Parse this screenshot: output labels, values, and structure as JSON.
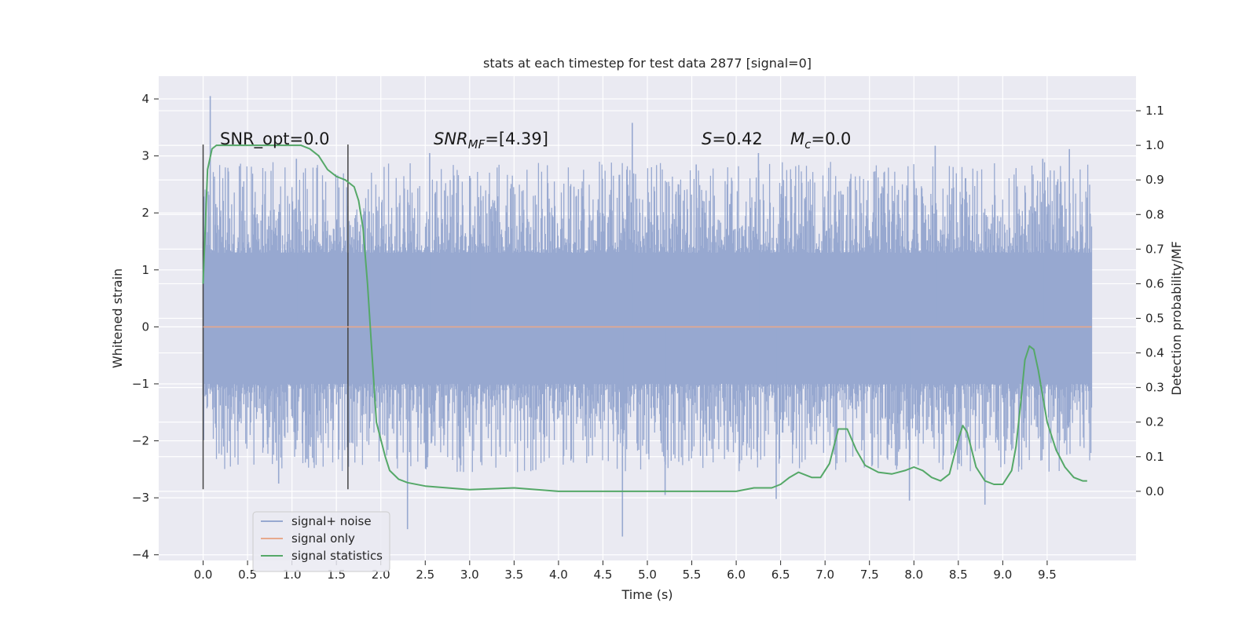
{
  "chart_data": {
    "type": "line",
    "title": "stats at each timestep for test data 2877 [signal=0]",
    "xlabel": "Time (s)",
    "ylabel": "Whitened strain",
    "y2label": "Detection probability/MF",
    "xlim": [
      -0.5,
      10.5
    ],
    "ylim": [
      -4.1,
      4.4
    ],
    "y2lim": [
      -0.2,
      1.2
    ],
    "x_ticks": [
      "0.0",
      "0.5",
      "1.0",
      "1.5",
      "2.0",
      "2.5",
      "3.0",
      "3.5",
      "4.0",
      "4.5",
      "5.0",
      "5.5",
      "6.0",
      "6.5",
      "7.0",
      "7.5",
      "8.0",
      "8.5",
      "9.0",
      "9.5"
    ],
    "y_ticks": [
      "4",
      "3",
      "2",
      "1",
      "0",
      "−1",
      "−2",
      "−3",
      "−4"
    ],
    "y2_ticks": [
      "1.1",
      "1.0",
      "0.9",
      "0.8",
      "0.7",
      "0.6",
      "0.5",
      "0.4",
      "0.3",
      "0.2",
      "0.1",
      "0.0"
    ],
    "grid": true,
    "legend_position": "lower-left",
    "annotations": {
      "snr_opt": "SNR_opt=0.0",
      "snr_mf_base": "SNR",
      "snr_mf_sub": "MF",
      "snr_mf_value": "=[4.39]",
      "s_symbol": "S",
      "s_value": "=0.42",
      "mc_base": "M",
      "mc_sub": "c",
      "mc_value": "=0.0"
    },
    "vlines": [
      0.0,
      1.63
    ],
    "vline_yrange": [
      -2.85,
      3.2
    ],
    "noise_envelope": {
      "x_start": 0.0,
      "x_end": 10.0,
      "core_low": -1.0,
      "core_high": 1.3,
      "spikes": [
        {
          "x": 0.08,
          "y": 4.05
        },
        {
          "x": 4.83,
          "y": 3.58
        },
        {
          "x": 8.24,
          "y": 3.18
        },
        {
          "x": 9.75,
          "y": 3.12
        },
        {
          "x": 2.3,
          "y": -3.55
        },
        {
          "x": 4.72,
          "y": -3.68
        },
        {
          "x": 8.8,
          "y": -3.12
        },
        {
          "x": 7.95,
          "y": -3.05
        },
        {
          "x": 6.45,
          "y": -3.02
        },
        {
          "x": 5.2,
          "y": -2.95
        },
        {
          "x": 1.05,
          "y": 2.95
        },
        {
          "x": 3.0,
          "y": 2.65
        },
        {
          "x": 6.25,
          "y": 3.05
        },
        {
          "x": 2.55,
          "y": 3.05
        },
        {
          "x": 0.85,
          "y": -2.75
        },
        {
          "x": 9.45,
          "y": 2.95
        },
        {
          "x": 5.55,
          "y": 2.85
        }
      ]
    },
    "series": [
      {
        "name": "signal+ noise",
        "color": "#97a8d0",
        "axis": "left"
      },
      {
        "name": "signal only",
        "color": "#e7a98d",
        "axis": "left",
        "x": [
          0.0,
          10.0
        ],
        "y": [
          0.0,
          0.0
        ]
      },
      {
        "name": "signal statistics",
        "color": "#55a868",
        "axis": "right",
        "x": [
          0.0,
          0.05,
          0.1,
          0.15,
          0.2,
          0.3,
          0.5,
          0.8,
          1.0,
          1.1,
          1.2,
          1.3,
          1.4,
          1.5,
          1.6,
          1.7,
          1.75,
          1.8,
          1.85,
          1.9,
          1.95,
          2.0,
          2.05,
          2.1,
          2.2,
          2.3,
          2.5,
          3.0,
          3.5,
          4.0,
          4.5,
          5.0,
          5.5,
          6.0,
          6.2,
          6.4,
          6.5,
          6.6,
          6.7,
          6.85,
          6.95,
          7.05,
          7.15,
          7.25,
          7.35,
          7.45,
          7.6,
          7.75,
          7.9,
          8.0,
          8.1,
          8.2,
          8.3,
          8.4,
          8.5,
          8.55,
          8.6,
          8.65,
          8.7,
          8.8,
          8.9,
          9.0,
          9.1,
          9.15,
          9.2,
          9.25,
          9.3,
          9.35,
          9.4,
          9.5,
          9.6,
          9.7,
          9.8,
          9.9,
          9.95
        ],
        "y": [
          0.6,
          0.93,
          0.99,
          1.0,
          1.0,
          1.0,
          1.0,
          1.0,
          1.0,
          1.0,
          0.99,
          0.97,
          0.93,
          0.91,
          0.9,
          0.88,
          0.84,
          0.76,
          0.6,
          0.4,
          0.2,
          0.15,
          0.1,
          0.06,
          0.035,
          0.025,
          0.015,
          0.005,
          0.01,
          0.0,
          0.0,
          0.0,
          0.0,
          0.0,
          0.01,
          0.01,
          0.02,
          0.04,
          0.055,
          0.04,
          0.04,
          0.08,
          0.18,
          0.18,
          0.12,
          0.075,
          0.055,
          0.05,
          0.06,
          0.07,
          0.06,
          0.04,
          0.03,
          0.05,
          0.15,
          0.19,
          0.17,
          0.12,
          0.07,
          0.03,
          0.02,
          0.02,
          0.06,
          0.13,
          0.25,
          0.38,
          0.42,
          0.41,
          0.35,
          0.2,
          0.12,
          0.07,
          0.04,
          0.03,
          0.03
        ]
      }
    ]
  }
}
